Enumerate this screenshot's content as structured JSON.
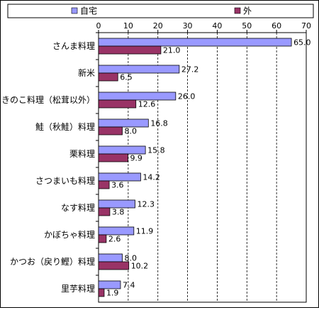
{
  "chart_data": {
    "type": "bar",
    "orientation": "horizontal",
    "categories": [
      "さんま料理",
      "新米",
      "きのこ料理（松茸以外）",
      "鮭（秋鮭）料理",
      "栗料理",
      "さつまいも料理",
      "なす料理",
      "かぼちゃ料理",
      "かつお（戻り鰹）料理",
      "里芋料理"
    ],
    "series": [
      {
        "name": "自宅",
        "color": "#9999ff",
        "values": [
          65.0,
          27.2,
          26.0,
          16.8,
          15.8,
          14.2,
          12.3,
          11.9,
          8.0,
          7.4
        ]
      },
      {
        "name": "外",
        "color": "#993366",
        "values": [
          21.0,
          6.5,
          12.6,
          8.0,
          9.9,
          3.6,
          3.8,
          2.6,
          10.2,
          1.9
        ]
      }
    ],
    "xlim": [
      0,
      70
    ],
    "xticks": [
      0,
      10,
      20,
      30,
      40,
      50,
      60,
      70
    ],
    "grid": "vertical dashed",
    "legend": "top"
  }
}
